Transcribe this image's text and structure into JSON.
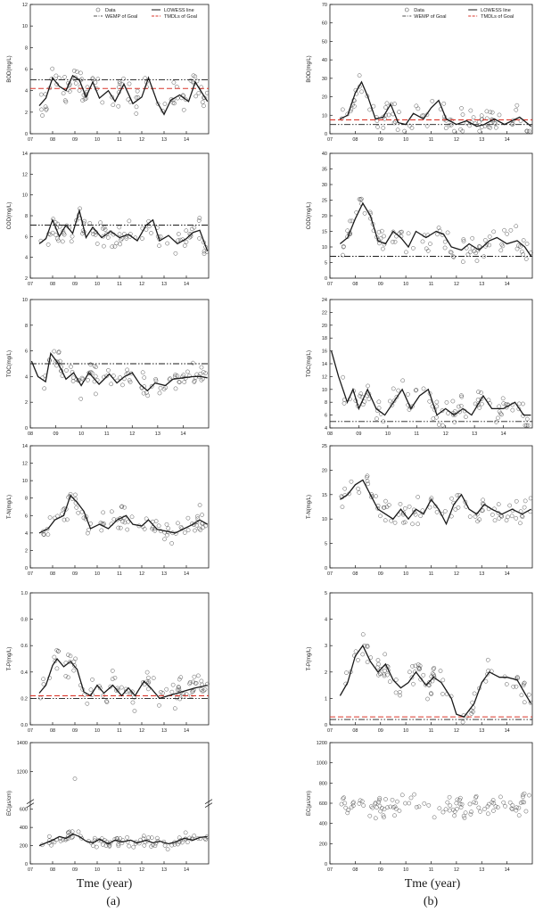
{
  "figure": {
    "xlabel": "Tme (year)",
    "panels": [
      "(a)",
      "(b)"
    ]
  },
  "legend": {
    "data": "Data",
    "wemp": "WEMP of Goal",
    "lowess": "LOWESS line",
    "tmdl": "TMDLs of Goal"
  },
  "colors": {
    "tmdl": "#d9372b",
    "ink": "#1a1a1a"
  },
  "chart_data": [
    {
      "id": "a1",
      "type": "scatter",
      "ylabel": "BOD(mg/L)",
      "ylim": [
        0,
        12
      ],
      "yticks": [
        0,
        2,
        4,
        6,
        8,
        10,
        12
      ],
      "xlim": [
        7,
        15
      ],
      "xticks": [
        "07",
        "08",
        "09",
        "10",
        "11",
        "12",
        "13",
        "14"
      ],
      "wemp": 5,
      "tmdl": 4.2,
      "lowess": [
        [
          7.4,
          2.6
        ],
        [
          7.7,
          3.3
        ],
        [
          8.0,
          5.2
        ],
        [
          8.3,
          4.4
        ],
        [
          8.6,
          4.0
        ],
        [
          8.9,
          5.4
        ],
        [
          9.2,
          5.0
        ],
        [
          9.5,
          3.4
        ],
        [
          9.8,
          4.8
        ],
        [
          10.1,
          3.3
        ],
        [
          10.5,
          4.0
        ],
        [
          10.8,
          3.0
        ],
        [
          11.2,
          4.6
        ],
        [
          11.6,
          2.8
        ],
        [
          12.0,
          3.4
        ],
        [
          12.3,
          5.2
        ],
        [
          12.7,
          2.9
        ],
        [
          13.0,
          1.8
        ],
        [
          13.3,
          3.1
        ],
        [
          13.7,
          3.6
        ],
        [
          14.1,
          3.0
        ],
        [
          14.4,
          4.8
        ],
        [
          14.7,
          3.8
        ],
        [
          14.95,
          3.0
        ]
      ]
    },
    {
      "id": "b1",
      "type": "scatter",
      "ylabel": "BOD(mg/L)",
      "ylim": [
        0,
        70
      ],
      "yticks": [
        0,
        10,
        20,
        30,
        40,
        50,
        60,
        70
      ],
      "xlim": [
        7,
        15
      ],
      "xticks": [
        "07",
        "08",
        "09",
        "10",
        "11",
        "12",
        "13",
        "14"
      ],
      "wemp": 5,
      "tmdl": 7.5,
      "lowess": [
        [
          7.4,
          8
        ],
        [
          7.7,
          10
        ],
        [
          8.0,
          22
        ],
        [
          8.25,
          28
        ],
        [
          8.5,
          20
        ],
        [
          8.8,
          8
        ],
        [
          9.1,
          9
        ],
        [
          9.4,
          16
        ],
        [
          9.7,
          6
        ],
        [
          10.0,
          5
        ],
        [
          10.3,
          11
        ],
        [
          10.7,
          8
        ],
        [
          11.0,
          14
        ],
        [
          11.3,
          18
        ],
        [
          11.6,
          8
        ],
        [
          12.0,
          5
        ],
        [
          12.4,
          7
        ],
        [
          12.8,
          4
        ],
        [
          13.1,
          5
        ],
        [
          13.5,
          8
        ],
        [
          13.9,
          5
        ],
        [
          14.2,
          7
        ],
        [
          14.5,
          9
        ],
        [
          14.95,
          4
        ]
      ]
    },
    {
      "id": "a2",
      "type": "scatter",
      "ylabel": "COD(mg/L)",
      "ylim": [
        2,
        14
      ],
      "yticks": [
        2,
        4,
        6,
        8,
        10,
        12,
        14
      ],
      "xlim": [
        7,
        15
      ],
      "xticks": [
        "07",
        "08",
        "09",
        "10",
        "11",
        "12",
        "13",
        "14"
      ],
      "wemp": 7.1,
      "lowess": [
        [
          7.4,
          5.3
        ],
        [
          7.7,
          5.8
        ],
        [
          8.0,
          7.6
        ],
        [
          8.3,
          6.0
        ],
        [
          8.6,
          7.1
        ],
        [
          8.9,
          6.3
        ],
        [
          9.2,
          8.5
        ],
        [
          9.5,
          5.9
        ],
        [
          9.8,
          6.9
        ],
        [
          10.2,
          5.9
        ],
        [
          10.6,
          6.5
        ],
        [
          11.0,
          5.9
        ],
        [
          11.4,
          6.2
        ],
        [
          11.8,
          5.6
        ],
        [
          12.2,
          7.1
        ],
        [
          12.5,
          7.6
        ],
        [
          12.8,
          5.6
        ],
        [
          13.2,
          6.1
        ],
        [
          13.6,
          5.3
        ],
        [
          14.0,
          5.8
        ],
        [
          14.3,
          6.4
        ],
        [
          14.6,
          6.6
        ],
        [
          14.95,
          4.6
        ]
      ]
    },
    {
      "id": "b2",
      "type": "scatter",
      "ylabel": "COD(mg/L)",
      "ylim": [
        0,
        40
      ],
      "yticks": [
        0,
        5,
        10,
        15,
        20,
        25,
        30,
        35,
        40
      ],
      "xlim": [
        7,
        15
      ],
      "xticks": [
        "07",
        "08",
        "09",
        "10",
        "11",
        "12",
        "13",
        "14"
      ],
      "wemp": 7,
      "lowess": [
        [
          7.4,
          11
        ],
        [
          7.7,
          13
        ],
        [
          8.0,
          19
        ],
        [
          8.3,
          24
        ],
        [
          8.6,
          20
        ],
        [
          8.9,
          12
        ],
        [
          9.2,
          11
        ],
        [
          9.5,
          15
        ],
        [
          9.8,
          13
        ],
        [
          10.1,
          10
        ],
        [
          10.4,
          15
        ],
        [
          10.8,
          13
        ],
        [
          11.2,
          15
        ],
        [
          11.5,
          14
        ],
        [
          11.8,
          10
        ],
        [
          12.2,
          9
        ],
        [
          12.5,
          11
        ],
        [
          12.9,
          9
        ],
        [
          13.3,
          12
        ],
        [
          13.6,
          13
        ],
        [
          14.0,
          11
        ],
        [
          14.4,
          12
        ],
        [
          14.7,
          10
        ],
        [
          14.95,
          7
        ]
      ]
    },
    {
      "id": "a3",
      "type": "scatter",
      "ylabel": "TOC(mg/L)",
      "ylim": [
        0,
        10
      ],
      "yticks": [
        0,
        2,
        4,
        6,
        8,
        10
      ],
      "xlim": [
        8,
        15
      ],
      "xticks": [
        "08",
        "09",
        "10",
        "11",
        "12",
        "13",
        "14"
      ],
      "wemp": 5,
      "lowess": [
        [
          8.05,
          5.2
        ],
        [
          8.3,
          4.0
        ],
        [
          8.6,
          3.6
        ],
        [
          8.8,
          5.8
        ],
        [
          9.1,
          5.0
        ],
        [
          9.4,
          3.8
        ],
        [
          9.7,
          4.3
        ],
        [
          10.0,
          3.3
        ],
        [
          10.3,
          4.3
        ],
        [
          10.7,
          3.4
        ],
        [
          11.1,
          4.2
        ],
        [
          11.4,
          3.5
        ],
        [
          11.7,
          4.0
        ],
        [
          12.0,
          4.3
        ],
        [
          12.3,
          3.4
        ],
        [
          12.6,
          2.9
        ],
        [
          12.9,
          3.5
        ],
        [
          13.3,
          3.3
        ],
        [
          13.6,
          3.8
        ],
        [
          14.0,
          3.9
        ],
        [
          14.4,
          4.0
        ],
        [
          14.7,
          4.0
        ],
        [
          14.95,
          3.9
        ]
      ]
    },
    {
      "id": "b3",
      "type": "scatter",
      "ylabel": "TOC(mg/L)",
      "ylim": [
        4,
        24
      ],
      "yticks": [
        4,
        6,
        8,
        10,
        12,
        14,
        16,
        18,
        20,
        22,
        24
      ],
      "xlim": [
        8,
        15
      ],
      "xticks": [
        "08",
        "09",
        "10",
        "11",
        "12",
        "13",
        "14"
      ],
      "wemp": 5,
      "lowess": [
        [
          8.05,
          16
        ],
        [
          8.3,
          12
        ],
        [
          8.6,
          8
        ],
        [
          8.8,
          10
        ],
        [
          9.0,
          7
        ],
        [
          9.3,
          10
        ],
        [
          9.6,
          7
        ],
        [
          9.9,
          6
        ],
        [
          10.2,
          8
        ],
        [
          10.5,
          10
        ],
        [
          10.8,
          7
        ],
        [
          11.1,
          9
        ],
        [
          11.4,
          10
        ],
        [
          11.7,
          6
        ],
        [
          12.0,
          7
        ],
        [
          12.3,
          6
        ],
        [
          12.6,
          7
        ],
        [
          12.9,
          6
        ],
        [
          13.3,
          9
        ],
        [
          13.6,
          7
        ],
        [
          14.0,
          7
        ],
        [
          14.4,
          8
        ],
        [
          14.7,
          6
        ],
        [
          14.95,
          6
        ]
      ]
    },
    {
      "id": "a4",
      "type": "scatter",
      "ylabel": "T-N(mg/L)",
      "ylim": [
        0,
        14
      ],
      "yticks": [
        0,
        2,
        4,
        6,
        8,
        10,
        12,
        14
      ],
      "xlim": [
        7,
        15
      ],
      "xticks": [
        "07",
        "08",
        "09",
        "10",
        "11",
        "12",
        "13",
        "14"
      ],
      "lowess": [
        [
          7.4,
          4.0
        ],
        [
          7.8,
          4.5
        ],
        [
          8.1,
          5.5
        ],
        [
          8.5,
          6.0
        ],
        [
          8.8,
          8.3
        ],
        [
          9.1,
          7.5
        ],
        [
          9.4,
          6.5
        ],
        [
          9.7,
          4.5
        ],
        [
          10.1,
          5.0
        ],
        [
          10.5,
          4.5
        ],
        [
          10.9,
          5.5
        ],
        [
          11.3,
          6.0
        ],
        [
          11.6,
          5.0
        ],
        [
          12.0,
          4.8
        ],
        [
          12.3,
          5.5
        ],
        [
          12.7,
          4.4
        ],
        [
          13.1,
          4.2
        ],
        [
          13.5,
          4.0
        ],
        [
          13.9,
          4.5
        ],
        [
          14.3,
          5.0
        ],
        [
          14.6,
          5.5
        ],
        [
          14.95,
          5.0
        ]
      ]
    },
    {
      "id": "b4",
      "type": "scatter",
      "ylabel": "T-N(mg/L)",
      "ylim": [
        0,
        25
      ],
      "yticks": [
        0,
        5,
        10,
        15,
        20,
        25
      ],
      "xlim": [
        7,
        15
      ],
      "xticks": [
        "07",
        "08",
        "09",
        "10",
        "11",
        "12",
        "13",
        "14"
      ],
      "lowess": [
        [
          7.4,
          14
        ],
        [
          7.7,
          15
        ],
        [
          8.0,
          17
        ],
        [
          8.3,
          18
        ],
        [
          8.6,
          15
        ],
        [
          8.9,
          12
        ],
        [
          9.2,
          11
        ],
        [
          9.5,
          10
        ],
        [
          9.8,
          12
        ],
        [
          10.1,
          10
        ],
        [
          10.4,
          12
        ],
        [
          10.7,
          11
        ],
        [
          11.0,
          14
        ],
        [
          11.3,
          12
        ],
        [
          11.6,
          9
        ],
        [
          11.9,
          13
        ],
        [
          12.2,
          15
        ],
        [
          12.5,
          12
        ],
        [
          12.8,
          11
        ],
        [
          13.1,
          13
        ],
        [
          13.4,
          12
        ],
        [
          13.8,
          11
        ],
        [
          14.2,
          12
        ],
        [
          14.6,
          11
        ],
        [
          14.95,
          12
        ]
      ]
    },
    {
      "id": "a5",
      "type": "scatter",
      "ylabel": "T-P(mg/L)",
      "ylim": [
        0,
        1
      ],
      "yticks": [
        0.0,
        0.2,
        0.4,
        0.6,
        0.8,
        1.0
      ],
      "xlim": [
        7,
        15
      ],
      "xticks": [
        "07",
        "08",
        "09",
        "10",
        "11",
        "12",
        "13",
        "14"
      ],
      "wemp": 0.2,
      "tmdl": 0.22,
      "lowess": [
        [
          7.4,
          0.24
        ],
        [
          7.7,
          0.3
        ],
        [
          8.0,
          0.45
        ],
        [
          8.2,
          0.5
        ],
        [
          8.5,
          0.44
        ],
        [
          8.8,
          0.48
        ],
        [
          9.1,
          0.42
        ],
        [
          9.4,
          0.25
        ],
        [
          9.7,
          0.22
        ],
        [
          10.0,
          0.3
        ],
        [
          10.3,
          0.24
        ],
        [
          10.7,
          0.3
        ],
        [
          11.1,
          0.22
        ],
        [
          11.4,
          0.28
        ],
        [
          11.7,
          0.22
        ],
        [
          12.1,
          0.33
        ],
        [
          12.4,
          0.28
        ],
        [
          12.8,
          0.2
        ],
        [
          13.2,
          0.22
        ],
        [
          13.6,
          0.24
        ],
        [
          14.0,
          0.26
        ],
        [
          14.4,
          0.28
        ],
        [
          14.7,
          0.29
        ],
        [
          14.95,
          0.3
        ]
      ]
    },
    {
      "id": "b5",
      "type": "scatter",
      "ylabel": "T-P(mg/L)",
      "ylim": [
        0,
        5
      ],
      "yticks": [
        0,
        1,
        2,
        3,
        4,
        5
      ],
      "xlim": [
        7,
        15
      ],
      "xticks": [
        "07",
        "08",
        "09",
        "10",
        "11",
        "12",
        "13",
        "14"
      ],
      "wemp": 0.2,
      "tmdl": 0.3,
      "lowess": [
        [
          7.4,
          1.1
        ],
        [
          7.7,
          1.6
        ],
        [
          8.0,
          2.6
        ],
        [
          8.3,
          3.0
        ],
        [
          8.6,
          2.4
        ],
        [
          8.9,
          2.0
        ],
        [
          9.2,
          2.3
        ],
        [
          9.5,
          1.7
        ],
        [
          9.8,
          1.4
        ],
        [
          10.1,
          1.6
        ],
        [
          10.4,
          2.0
        ],
        [
          10.8,
          1.5
        ],
        [
          11.1,
          1.8
        ],
        [
          11.4,
          1.6
        ],
        [
          11.8,
          1.0
        ],
        [
          12.0,
          0.4
        ],
        [
          12.3,
          0.3
        ],
        [
          12.7,
          0.8
        ],
        [
          13.0,
          1.6
        ],
        [
          13.3,
          2.0
        ],
        [
          13.7,
          1.8
        ],
        [
          14.0,
          1.8
        ],
        [
          14.4,
          1.7
        ],
        [
          14.7,
          1.2
        ],
        [
          14.95,
          0.8
        ]
      ]
    },
    {
      "id": "a6",
      "type": "scatter",
      "ylabel": "EC(㎲/cm)",
      "ylim": [
        0,
        600
      ],
      "ylim_upper": [
        1000,
        1400
      ],
      "yticks": [
        0,
        200,
        400,
        600
      ],
      "yticks_upper": [
        1200,
        1400
      ],
      "xlim": [
        7,
        15
      ],
      "xticks": [
        "07",
        "08",
        "09",
        "10",
        "11",
        "12",
        "13",
        "14"
      ],
      "outlier": [
        9.0,
        1150
      ],
      "lowess": [
        [
          7.4,
          200
        ],
        [
          7.7,
          230
        ],
        [
          8.0,
          260
        ],
        [
          8.3,
          300
        ],
        [
          8.6,
          280
        ],
        [
          8.9,
          330
        ],
        [
          9.2,
          300
        ],
        [
          9.5,
          250
        ],
        [
          9.8,
          230
        ],
        [
          10.1,
          270
        ],
        [
          10.5,
          220
        ],
        [
          10.8,
          260
        ],
        [
          11.1,
          240
        ],
        [
          11.5,
          260
        ],
        [
          11.8,
          230
        ],
        [
          12.2,
          260
        ],
        [
          12.5,
          230
        ],
        [
          12.8,
          250
        ],
        [
          13.2,
          220
        ],
        [
          13.5,
          240
        ],
        [
          13.9,
          280
        ],
        [
          14.3,
          260
        ],
        [
          14.6,
          290
        ],
        [
          14.95,
          300
        ]
      ]
    },
    {
      "id": "b6",
      "type": "scatter",
      "ylabel": "EC(㎲/cm)",
      "ylim": [
        0,
        1200
      ],
      "yticks": [
        0,
        200,
        400,
        600,
        800,
        1000,
        1200
      ],
      "xlim": [
        7,
        15
      ],
      "xticks": [
        "07",
        "08",
        "09",
        "10",
        "11",
        "12",
        "13",
        "14"
      ]
    }
  ]
}
